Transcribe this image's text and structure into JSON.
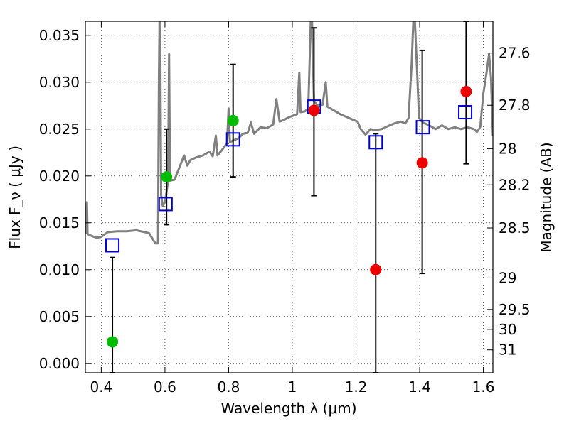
{
  "chart_data": {
    "type": "scatter",
    "xlabel": "Wavelength  λ (μm)",
    "ylabel": "Flux  F_ν  ( μJy )",
    "ylabel_right": "Magnitude (AB)",
    "xlim": [
      0.35,
      1.63
    ],
    "ylim": [
      -0.001,
      0.0365
    ],
    "grid": true,
    "x_ticks": [
      0.4,
      0.6,
      0.8,
      1.0,
      1.2,
      1.4,
      1.6
    ],
    "x_tick_labels": [
      "0.4",
      "0.6",
      "0.8",
      "1",
      "1.2",
      "1.4",
      "1.6"
    ],
    "y_ticks": [
      0.0,
      0.005,
      0.01,
      0.015,
      0.02,
      0.025,
      0.03,
      0.035
    ],
    "y_tick_labels": [
      "0.000",
      "0.005",
      "0.010",
      "0.015",
      "0.020",
      "0.025",
      "0.030",
      "0.035"
    ],
    "right_ticks": [
      {
        "mag": 27.6,
        "label": "27.6"
      },
      {
        "mag": 27.8,
        "label": "27.8"
      },
      {
        "mag": 28.0,
        "label": "28"
      },
      {
        "mag": 28.2,
        "label": "28.2"
      },
      {
        "mag": 28.5,
        "label": "28.5"
      },
      {
        "mag": 29.0,
        "label": "29"
      },
      {
        "mag": 29.5,
        "label": "29.5"
      },
      {
        "mag": 30.0,
        "label": "30"
      },
      {
        "mag": 31.0,
        "label": "31"
      }
    ],
    "series": [
      {
        "kind": "spectrum",
        "color": "#808080",
        "points": [
          [
            0.35,
            0.0138
          ],
          [
            0.352,
            0.0142
          ],
          [
            0.355,
            0.0172
          ],
          [
            0.357,
            0.0138
          ],
          [
            0.37,
            0.0136
          ],
          [
            0.385,
            0.0134
          ],
          [
            0.4,
            0.0135
          ],
          [
            0.42,
            0.014
          ],
          [
            0.45,
            0.0141
          ],
          [
            0.48,
            0.0141
          ],
          [
            0.51,
            0.0142
          ],
          [
            0.55,
            0.0139
          ],
          [
            0.57,
            0.0128
          ],
          [
            0.578,
            0.0128
          ],
          [
            0.581,
            0.03
          ],
          [
            0.583,
            0.0365
          ],
          [
            0.585,
            0.0365
          ],
          [
            0.588,
            0.018
          ],
          [
            0.593,
            0.0168
          ],
          [
            0.6,
            0.0172
          ],
          [
            0.61,
            0.0195
          ],
          [
            0.613,
            0.033
          ],
          [
            0.616,
            0.0195
          ],
          [
            0.63,
            0.0196
          ],
          [
            0.65,
            0.0213
          ],
          [
            0.66,
            0.0222
          ],
          [
            0.67,
            0.0211
          ],
          [
            0.68,
            0.0217
          ],
          [
            0.7,
            0.022
          ],
          [
            0.72,
            0.0222
          ],
          [
            0.74,
            0.0226
          ],
          [
            0.75,
            0.0221
          ],
          [
            0.76,
            0.0243
          ],
          [
            0.765,
            0.0222
          ],
          [
            0.78,
            0.0228
          ],
          [
            0.795,
            0.0235
          ],
          [
            0.8,
            0.0272
          ],
          [
            0.804,
            0.0236
          ],
          [
            0.815,
            0.0238
          ],
          [
            0.83,
            0.024
          ],
          [
            0.845,
            0.0245
          ],
          [
            0.86,
            0.0246
          ],
          [
            0.87,
            0.0257
          ],
          [
            0.88,
            0.0245
          ],
          [
            0.9,
            0.0252
          ],
          [
            0.92,
            0.0251
          ],
          [
            0.94,
            0.0255
          ],
          [
            0.95,
            0.0282
          ],
          [
            0.96,
            0.0258
          ],
          [
            0.975,
            0.026
          ],
          [
            0.985,
            0.0262
          ],
          [
            1.0,
            0.0264
          ],
          [
            1.015,
            0.0266
          ],
          [
            1.022,
            0.031
          ],
          [
            1.026,
            0.0268
          ],
          [
            1.04,
            0.0269
          ],
          [
            1.05,
            0.0272
          ],
          [
            1.058,
            0.0365
          ],
          [
            1.062,
            0.0365
          ],
          [
            1.068,
            0.028
          ],
          [
            1.08,
            0.0275
          ],
          [
            1.095,
            0.0276
          ],
          [
            1.105,
            0.03
          ],
          [
            1.11,
            0.0274
          ],
          [
            1.13,
            0.027
          ],
          [
            1.15,
            0.0266
          ],
          [
            1.17,
            0.0263
          ],
          [
            1.19,
            0.026
          ],
          [
            1.205,
            0.0258
          ],
          [
            1.215,
            0.025
          ],
          [
            1.23,
            0.0244
          ],
          [
            1.245,
            0.025
          ],
          [
            1.26,
            0.0249
          ],
          [
            1.28,
            0.025
          ],
          [
            1.3,
            0.0253
          ],
          [
            1.32,
            0.0256
          ],
          [
            1.34,
            0.0258
          ],
          [
            1.355,
            0.0256
          ],
          [
            1.365,
            0.0262
          ],
          [
            1.375,
            0.032
          ],
          [
            1.38,
            0.0365
          ],
          [
            1.385,
            0.0365
          ],
          [
            1.392,
            0.031
          ],
          [
            1.398,
            0.0262
          ],
          [
            1.41,
            0.0257
          ],
          [
            1.43,
            0.0254
          ],
          [
            1.45,
            0.025
          ],
          [
            1.47,
            0.0254
          ],
          [
            1.49,
            0.025
          ],
          [
            1.51,
            0.0252
          ],
          [
            1.53,
            0.025
          ],
          [
            1.55,
            0.0252
          ],
          [
            1.57,
            0.025
          ],
          [
            1.58,
            0.0247
          ],
          [
            1.59,
            0.0252
          ],
          [
            1.6,
            0.0288
          ],
          [
            1.61,
            0.031
          ],
          [
            1.618,
            0.033
          ],
          [
            1.624,
            0.0305
          ],
          [
            1.63,
            0.0243
          ]
        ]
      },
      {
        "kind": "model",
        "marker": "open-square",
        "color": "#0000cc",
        "points": [
          [
            0.435,
            0.0126
          ],
          [
            0.602,
            0.017
          ],
          [
            0.814,
            0.0239
          ],
          [
            1.068,
            0.0274
          ],
          [
            1.262,
            0.0236
          ],
          [
            1.41,
            0.0252
          ],
          [
            1.543,
            0.0268
          ]
        ]
      },
      {
        "kind": "detection-green",
        "marker": "filled-circle",
        "color": "#00bb00",
        "points": [
          {
            "x": 0.435,
            "y": 0.0023,
            "lo": -0.0011,
            "hi": 0.0113
          },
          {
            "x": 0.605,
            "y": 0.0199,
            "lo": 0.0148,
            "hi": 0.025
          },
          {
            "x": 0.814,
            "y": 0.0259,
            "lo": 0.0199,
            "hi": 0.0319
          }
        ]
      },
      {
        "kind": "detection-red",
        "marker": "filled-circle",
        "color": "#ee0000",
        "points": [
          {
            "x": 1.068,
            "y": 0.027,
            "lo": 0.0179,
            "hi": 0.0358
          },
          {
            "x": 1.262,
            "y": 0.01,
            "lo": -0.0011,
            "hi": 0.0245
          },
          {
            "x": 1.408,
            "y": 0.0214,
            "lo": 0.0096,
            "hi": 0.0334
          },
          {
            "x": 1.546,
            "y": 0.029,
            "lo": 0.0213,
            "hi": 0.0366
          }
        ]
      }
    ]
  }
}
